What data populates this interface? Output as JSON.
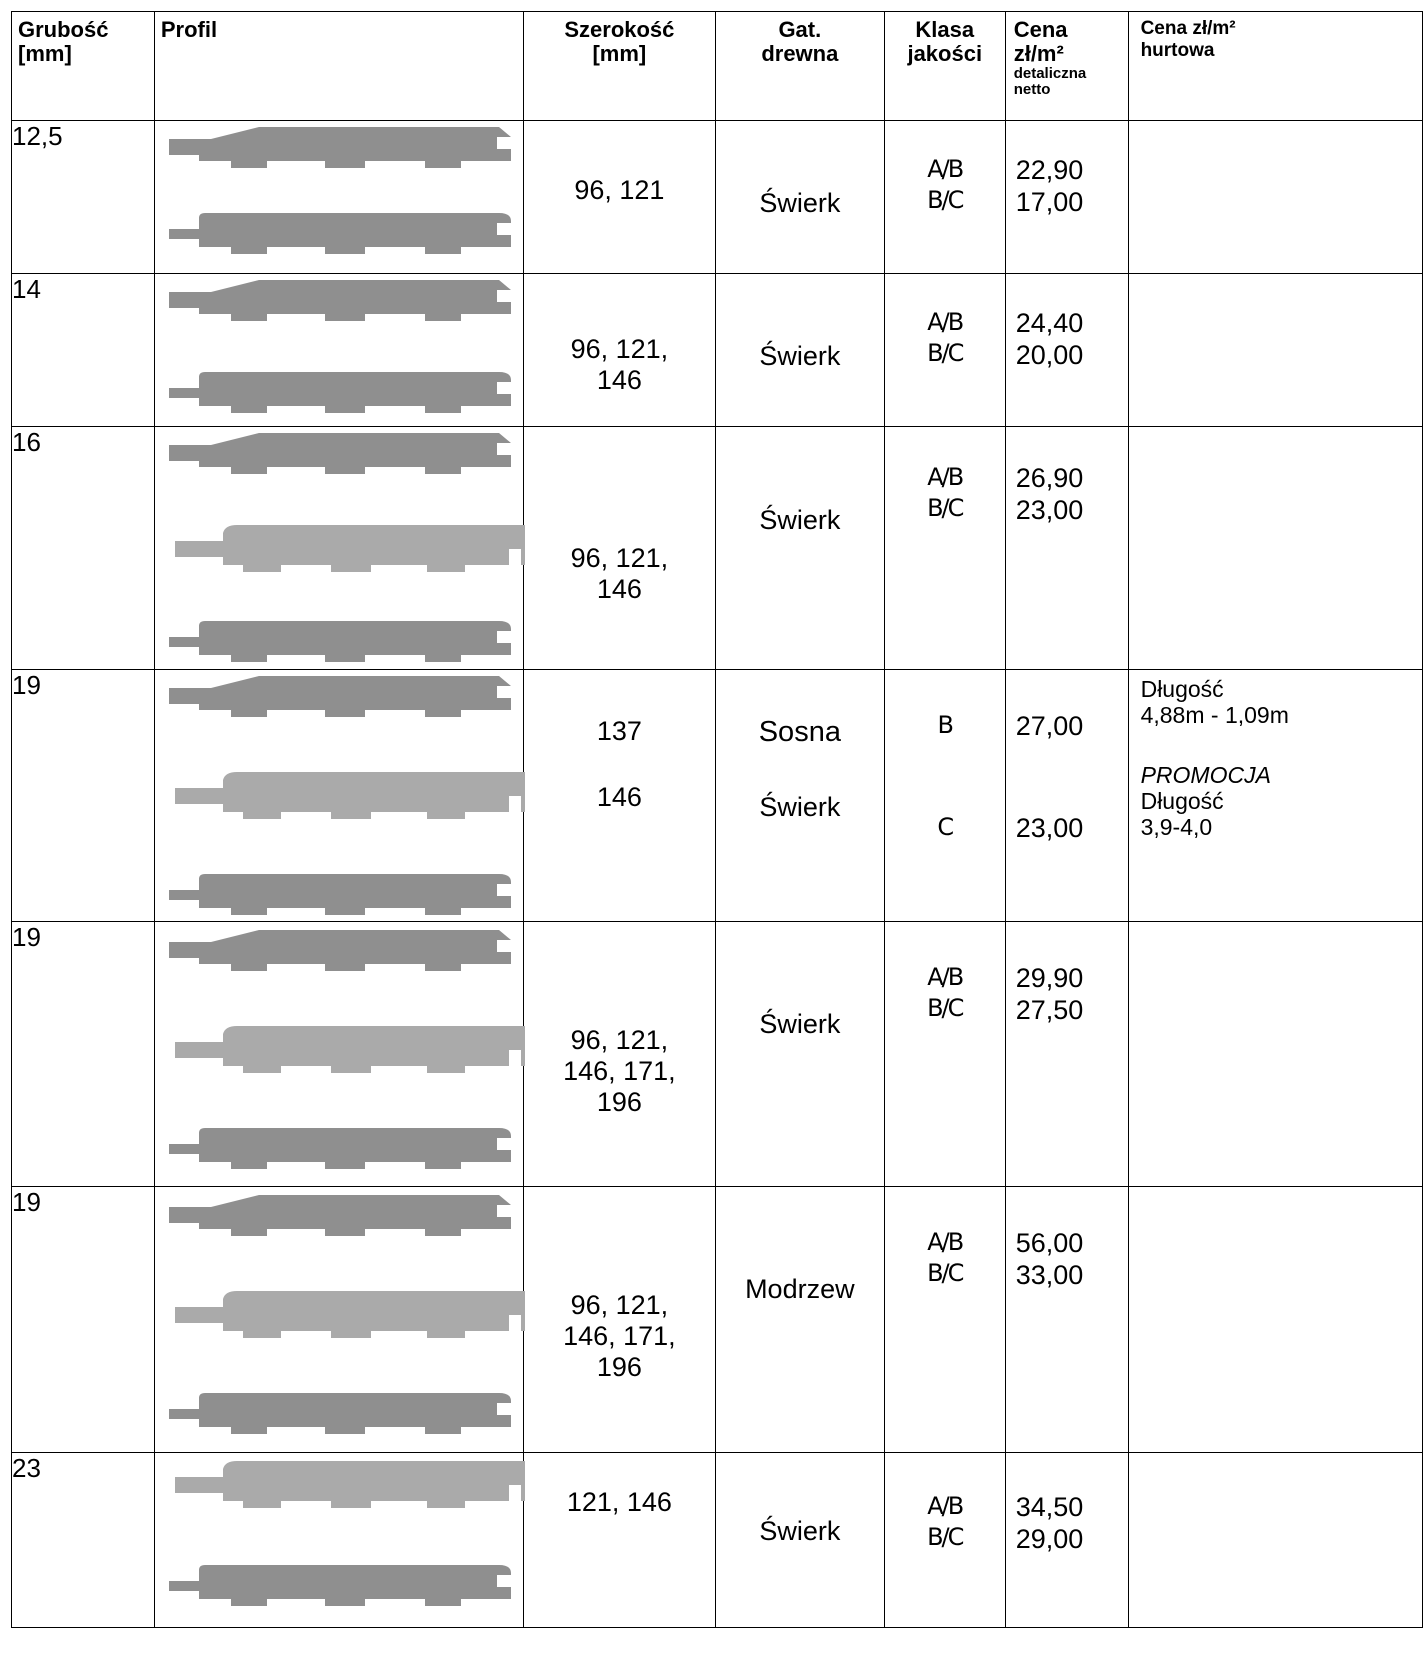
{
  "headers": {
    "thickness": "Grubość [mm]",
    "profile": "Profil",
    "width": "Szerokość [mm]",
    "wood_type": "Gat. drewna",
    "quality_class": "Klasa jakości",
    "retail_price_line1": "Cena",
    "retail_price_line2": "zł/m²",
    "retail_price_line3": "detaliczna",
    "retail_price_line4": "netto",
    "wholesale_price_line1": "Cena zł/m²",
    "wholesale_price_line2": "hurtowa"
  },
  "rows": [
    {
      "thickness": "12,5",
      "width_lines": [
        "96, 121"
      ],
      "wood": "Świerk",
      "classes": [
        "A/B",
        "B/C"
      ],
      "prices": [
        "22,90",
        "17,00"
      ]
    },
    {
      "thickness": "14",
      "width_lines": [
        "96, 121,",
        "146"
      ],
      "wood": "Świerk",
      "classes": [
        "A/B",
        "B/C"
      ],
      "prices": [
        "24,40",
        "20,00"
      ]
    },
    {
      "thickness": "16",
      "width_lines": [
        "96, 121,",
        "146"
      ],
      "wood": "Świerk",
      "classes": [
        "A/B",
        "B/C"
      ],
      "prices": [
        "26,90",
        "23,00"
      ]
    },
    {
      "thickness": "19",
      "width_a": "137",
      "width_b": "146",
      "wood_a": "Sosna",
      "wood_b": "Świerk",
      "class_a": "B",
      "class_b": "C",
      "price_a": "27,00",
      "price_b": "23,00",
      "note_length_label": "Długość",
      "note_length_value": "4,88m - 1,09m",
      "note_promo": "PROMOCJA",
      "note_promo_length_label": "Długość",
      "note_promo_length_value": "3,9-4,0"
    },
    {
      "thickness": "19",
      "width_lines": [
        "96, 121,",
        "146, 171,",
        "196"
      ],
      "wood": "Świerk",
      "classes": [
        "A/B",
        "B/C"
      ],
      "prices": [
        "29,90",
        "27,50"
      ]
    },
    {
      "thickness": "19",
      "width_lines": [
        "96, 121,",
        "146, 171,",
        "196"
      ],
      "wood": "Modrzew",
      "classes": [
        "A/B",
        "B/C"
      ],
      "prices": [
        "56,00",
        "33,00"
      ]
    },
    {
      "thickness": "23",
      "width_lines": [
        "121, 146"
      ],
      "wood": "Świerk",
      "classes": [
        "A/B",
        "B/C"
      ],
      "prices": [
        "34,50",
        "29,00"
      ]
    }
  ],
  "colors": {
    "board_dark": "#8f8f8f",
    "board_light": "#aaaaaa"
  }
}
